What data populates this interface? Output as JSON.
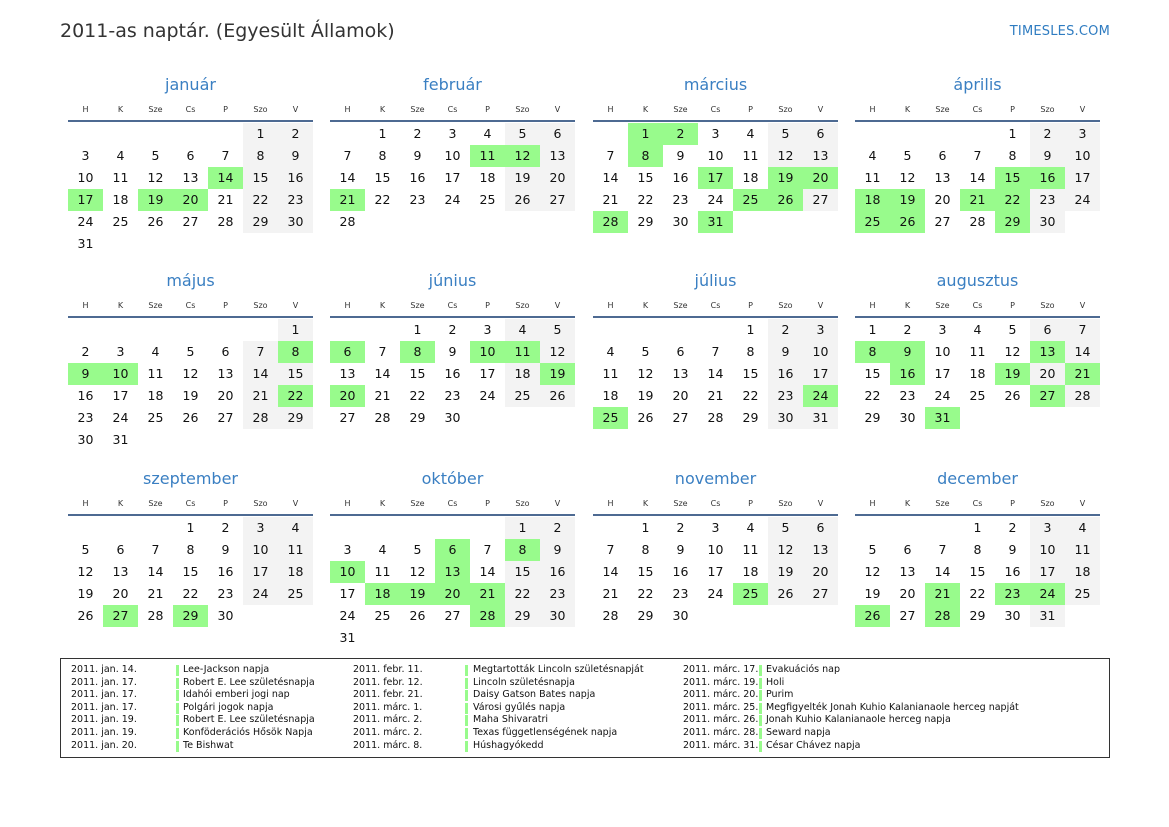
{
  "header": {
    "title": "2011-as naptár. (Egyesült Államok)",
    "brand": "TIMESLES.COM"
  },
  "weekdays": [
    "H",
    "K",
    "Sze",
    "Cs",
    "P",
    "Szo",
    "V"
  ],
  "colors": {
    "holiday": "#98fb8c",
    "weekend": "#f3f3f3",
    "month_title": "#3a7fc2",
    "rule": "#4d6a92"
  },
  "months": [
    {
      "name": "január",
      "start_weekday": 5,
      "days": 31,
      "holidays": [
        14,
        17,
        19,
        20
      ]
    },
    {
      "name": "február",
      "start_weekday": 1,
      "days": 28,
      "holidays": [
        11,
        12,
        21
      ]
    },
    {
      "name": "március",
      "start_weekday": 1,
      "days": 31,
      "holidays": [
        1,
        2,
        8,
        17,
        19,
        20,
        25,
        26,
        28,
        31
      ]
    },
    {
      "name": "április",
      "start_weekday": 4,
      "days": 30,
      "holidays": [
        15,
        16,
        18,
        19,
        21,
        22,
        25,
        26,
        29
      ]
    },
    {
      "name": "május",
      "start_weekday": 6,
      "days": 31,
      "holidays": [
        8,
        9,
        10,
        22
      ]
    },
    {
      "name": "június",
      "start_weekday": 2,
      "days": 30,
      "holidays": [
        6,
        8,
        10,
        11,
        19,
        20
      ]
    },
    {
      "name": "július",
      "start_weekday": 4,
      "days": 31,
      "holidays": [
        24,
        25
      ]
    },
    {
      "name": "augusztus",
      "start_weekday": 0,
      "days": 31,
      "holidays": [
        8,
        9,
        13,
        16,
        19,
        21,
        27,
        31
      ]
    },
    {
      "name": "szeptember",
      "start_weekday": 3,
      "days": 30,
      "holidays": [
        27,
        29
      ]
    },
    {
      "name": "október",
      "start_weekday": 5,
      "days": 31,
      "holidays": [
        6,
        8,
        10,
        13,
        18,
        19,
        20,
        21,
        28
      ]
    },
    {
      "name": "november",
      "start_weekday": 1,
      "days": 30,
      "holidays": [
        25
      ]
    },
    {
      "name": "december",
      "start_weekday": 3,
      "days": 31,
      "holidays": [
        21,
        23,
        24,
        26,
        28
      ]
    }
  ],
  "legend": [
    [
      {
        "date": "2011. jan. 14.",
        "name": "Lee-Jackson napja"
      },
      {
        "date": "2011. jan. 17.",
        "name": "Robert E. Lee születésnapja"
      },
      {
        "date": "2011. jan. 17.",
        "name": "Idahói emberi jogi nap"
      },
      {
        "date": "2011. jan. 17.",
        "name": "Polgári jogok napja"
      },
      {
        "date": "2011. jan. 19.",
        "name": "Robert E. Lee születésnapja"
      },
      {
        "date": "2011. jan. 19.",
        "name": "Konföderációs Hősök Napja"
      },
      {
        "date": "2011. jan. 20.",
        "name": "Te Bishwat"
      }
    ],
    [
      {
        "date": "2011. febr. 11.",
        "name": "Megtartották Lincoln születésnapját"
      },
      {
        "date": "2011. febr. 12.",
        "name": "Lincoln születésnapja"
      },
      {
        "date": "2011. febr. 21.",
        "name": "Daisy Gatson Bates napja"
      },
      {
        "date": "2011. márc. 1.",
        "name": "Városi gyűlés napja"
      },
      {
        "date": "2011. márc. 2.",
        "name": "Maha Shivaratri"
      },
      {
        "date": "2011. márc. 2.",
        "name": "Texas függetlenségének napja"
      },
      {
        "date": "2011. márc. 8.",
        "name": "Húshagyókedd"
      }
    ],
    [
      {
        "date": "2011. márc. 17.",
        "name": "Evakuációs nap"
      },
      {
        "date": "2011. márc. 19.",
        "name": "Holi"
      },
      {
        "date": "2011. márc. 20.",
        "name": "Purim"
      },
      {
        "date": "2011. márc. 25.",
        "name": "Megfigyelték Jonah Kuhio Kalanianaole herceg napját"
      },
      {
        "date": "2011. márc. 26.",
        "name": "Jonah Kuhio Kalanianaole herceg napja"
      },
      {
        "date": "2011. márc. 28.",
        "name": "Seward napja"
      },
      {
        "date": "2011. márc. 31.",
        "name": "César Chávez napja"
      }
    ]
  ]
}
